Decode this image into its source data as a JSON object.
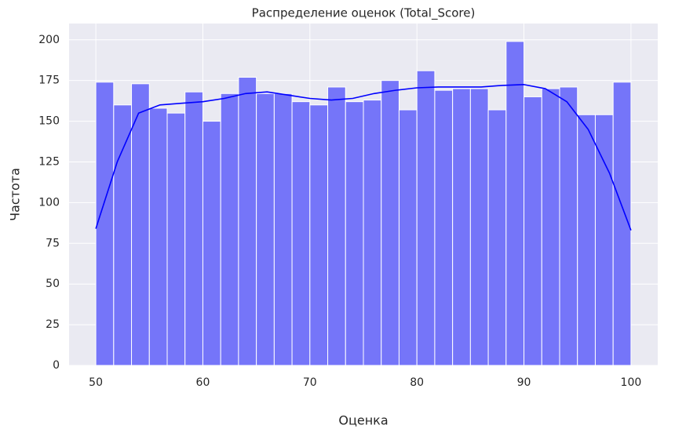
{
  "chart_data": {
    "type": "histogram",
    "title": "Распределение оценок (Total_Score)",
    "x_label": "Оценка",
    "y_label": "Частота",
    "bins": [
      50,
      51.667,
      53.333,
      55,
      56.667,
      58.333,
      60,
      61.667,
      63.333,
      65,
      66.667,
      68.333,
      70,
      71.667,
      73.333,
      75,
      76.667,
      78.333,
      80,
      81.667,
      83.333,
      85,
      86.667,
      88.333,
      90,
      91.667,
      93.333,
      95,
      96.667,
      98.333,
      100
    ],
    "counts": [
      174,
      160,
      173,
      158,
      155,
      168,
      150,
      167,
      177,
      167,
      167,
      162,
      160,
      171,
      162,
      163,
      175,
      157,
      181,
      169,
      170,
      170,
      157,
      199,
      165,
      170,
      171,
      154,
      154,
      174
    ],
    "color": "#7575f9",
    "kde": {
      "color": "#0000ff",
      "x": [
        50,
        52,
        54,
        56,
        58,
        60,
        62,
        64,
        66,
        68,
        70,
        72,
        74,
        76,
        78,
        80,
        82,
        84,
        86,
        88,
        90,
        92,
        94,
        96,
        98,
        100
      ],
      "y": [
        84,
        125,
        155,
        160,
        161,
        162,
        164,
        167,
        168,
        166,
        164,
        163,
        164,
        167,
        169,
        170.5,
        171,
        171,
        171,
        172,
        172.5,
        170,
        162,
        145,
        118,
        83
      ]
    },
    "xlim": [
      47.5,
      102.5
    ],
    "xticks": [
      50,
      60,
      70,
      80,
      90,
      100
    ],
    "ylim": [
      0,
      210
    ],
    "yticks": [
      0,
      25,
      50,
      75,
      100,
      125,
      150,
      175,
      200
    ],
    "grid": true
  }
}
